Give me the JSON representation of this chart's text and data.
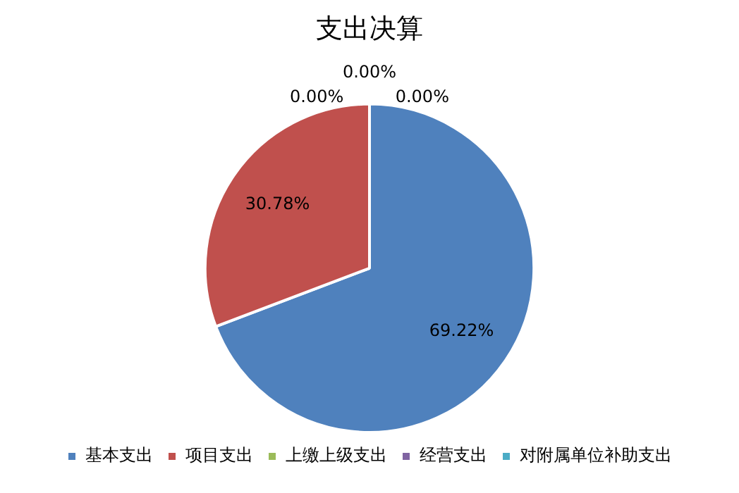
{
  "chart_data": {
    "type": "pie",
    "title": "支出决算",
    "categories": [
      "基本支出",
      "项目支出",
      "上缴上级支出",
      "经营支出",
      "对附属单位补助支出"
    ],
    "values": [
      69.22,
      30.78,
      0,
      0,
      0
    ],
    "value_labels": [
      "69.22%",
      "30.78%",
      "0.00%",
      "0.00%",
      "0.00%"
    ],
    "colors": [
      "#4f81bd",
      "#c0504d",
      "#9bbb59",
      "#8064a2",
      "#4bacc6"
    ],
    "legend": "bottom"
  }
}
